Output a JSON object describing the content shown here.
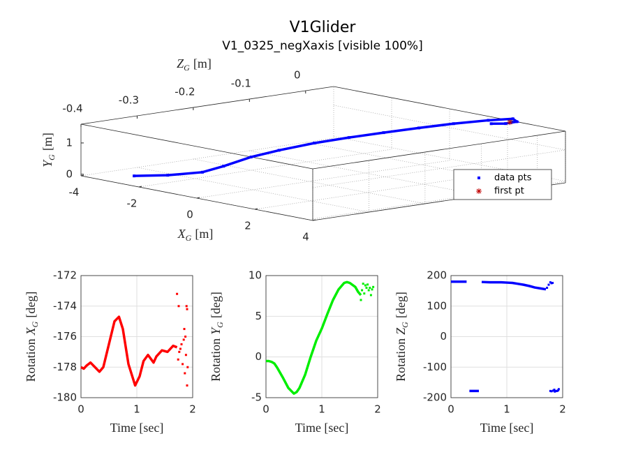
{
  "chart_data": [
    {
      "type": "scatter3d",
      "title": "V1Glider",
      "subtitle": "V1_0325_negXaxis [visible 100%]",
      "xlabel": {
        "symbol": "X",
        "subscript": "G",
        "unit": "[m]"
      },
      "ylabel": {
        "symbol": "Y",
        "subscript": "G",
        "unit": "[m]"
      },
      "zlabel": {
        "symbol": "Z",
        "subscript": "G",
        "unit": "[m]"
      },
      "xlim": [
        -4,
        4
      ],
      "ylim": [
        -0.05,
        1.6
      ],
      "zlim": [
        -0.4,
        0.05
      ],
      "xticks": [
        -4,
        -2,
        0,
        2,
        4
      ],
      "yticks": [
        0,
        1
      ],
      "zticks": [
        -0.4,
        -0.3,
        -0.2,
        -0.1,
        0
      ],
      "grid": true,
      "legend": "southeast",
      "series": [
        {
          "name": "data pts",
          "color": "#0000ff",
          "marker": "square",
          "x": [
            -3,
            -2.5,
            -2,
            -1.5,
            -1,
            -0.5,
            0,
            0.5,
            1,
            1.5,
            2,
            2.5,
            3,
            3.1,
            2.9,
            2.6
          ],
          "y": [
            0.01,
            0.03,
            0.12,
            0.37,
            0.69,
            0.93,
            1.15,
            1.32,
            1.47,
            1.61,
            1.74,
            1.84,
            1.93,
            1.85,
            1.78,
            1.75
          ],
          "z": [
            -0.357,
            -0.323,
            -0.287,
            -0.275,
            -0.252,
            -0.228,
            -0.191,
            -0.155,
            -0.119,
            -0.082,
            -0.046,
            -0.01,
            0.008,
            0.01,
            0,
            -0.01
          ]
        },
        {
          "name": "first pt",
          "color": "#c00000",
          "marker": "asterisk",
          "x": [
            3.05
          ],
          "y": [
            1.85
          ],
          "z": [
            0
          ]
        }
      ]
    },
    {
      "type": "scatter",
      "xlabel": "Time [sec]",
      "ylabel": {
        "prefix": "Rotation",
        "symbol": "X",
        "subscript": "G",
        "unit": "[deg]"
      },
      "xlim": [
        0,
        2
      ],
      "ylim": [
        -180,
        -172
      ],
      "xticks": [
        0,
        1,
        2
      ],
      "yticks": [
        -180,
        -178,
        -176,
        -174,
        -172
      ],
      "grid": true,
      "series": [
        {
          "color": "#ff0000",
          "style": "line",
          "x": [
            0,
            0.05,
            0.1,
            0.17,
            0.25,
            0.33,
            0.4,
            0.5,
            0.6,
            0.68,
            0.75,
            0.85,
            0.97,
            1.05,
            1.12,
            1.2,
            1.3,
            1.35,
            1.45,
            1.55,
            1.65,
            1.72
          ],
          "values": [
            -178,
            -178.1,
            -177.9,
            -177.7,
            -178,
            -178.3,
            -178,
            -176.5,
            -175,
            -174.7,
            -175.5,
            -177.8,
            -179.2,
            -178.6,
            -177.6,
            -177.2,
            -177.7,
            -177.3,
            -176.9,
            -177,
            -176.6,
            -176.7
          ]
        },
        {
          "color": "#ff0000",
          "style": "markers",
          "x": [
            1.72,
            1.74,
            1.75,
            1.76,
            1.78,
            1.8,
            1.82,
            1.84,
            1.85,
            1.86,
            1.87,
            1.88,
            1.89,
            1.9,
            1.9,
            1.91
          ],
          "values": [
            -173.2,
            -177.5,
            -174,
            -177,
            -176.8,
            -176.5,
            -177.8,
            -176.2,
            -175.5,
            -178.4,
            -176,
            -177.2,
            -174,
            -179.2,
            -174.2,
            -178
          ]
        }
      ]
    },
    {
      "type": "scatter",
      "xlabel": "Time [sec]",
      "ylabel": {
        "prefix": "Rotation",
        "symbol": "Y",
        "subscript": "G",
        "unit": "[deg]"
      },
      "xlim": [
        0,
        2
      ],
      "ylim": [
        -5,
        10
      ],
      "xticks": [
        0,
        1,
        2
      ],
      "yticks": [
        -5,
        0,
        5,
        10
      ],
      "grid": true,
      "series": [
        {
          "color": "#00ee00",
          "style": "line",
          "x": [
            0,
            0.05,
            0.1,
            0.15,
            0.2,
            0.3,
            0.4,
            0.5,
            0.55,
            0.6,
            0.7,
            0.8,
            0.85,
            0.9,
            1.0,
            1.1,
            1.2,
            1.3,
            1.4,
            1.45,
            1.5,
            1.6,
            1.65,
            1.7
          ],
          "values": [
            -0.5,
            -0.5,
            -0.6,
            -0.8,
            -1.3,
            -2.5,
            -3.8,
            -4.5,
            -4.3,
            -3.8,
            -2.2,
            0,
            1,
            2,
            3.5,
            5.3,
            7,
            8.3,
            9.1,
            9.2,
            9.1,
            8.6,
            8,
            7.6
          ]
        },
        {
          "color": "#00ee00",
          "style": "markers",
          "x": [
            1.7,
            1.72,
            1.74,
            1.76,
            1.78,
            1.8,
            1.82,
            1.84,
            1.86,
            1.88,
            1.9,
            1.92
          ],
          "values": [
            7,
            8.2,
            9,
            7.8,
            8.8,
            8.5,
            8.9,
            8.2,
            8.5,
            7.6,
            8.3,
            8.6
          ]
        }
      ]
    },
    {
      "type": "scatter",
      "xlabel": "Time [sec]",
      "ylabel": {
        "prefix": "Rotation",
        "symbol": "Z",
        "subscript": "G",
        "unit": "[deg]"
      },
      "xlim": [
        0,
        2
      ],
      "ylim": [
        -200,
        200
      ],
      "xticks": [
        0,
        1,
        2
      ],
      "yticks": [
        -200,
        -100,
        0,
        100,
        200
      ],
      "grid": true,
      "series": [
        {
          "color": "#0000ff",
          "style": "line",
          "x": [
            0,
            0.1,
            0.2,
            0.28,
            0.3,
            0.33,
            0.4,
            0.5,
            0.52,
            0.55,
            0.7,
            0.9,
            1.0,
            1.1,
            1.2,
            1.3,
            1.4,
            1.5,
            1.6,
            1.7
          ],
          "values": [
            180,
            180,
            180,
            180,
            null,
            -178,
            -178,
            -178,
            null,
            179,
            178,
            178,
            177,
            176,
            173,
            170,
            166,
            161,
            158,
            155
          ]
        },
        {
          "color": "#0000ff",
          "style": "markers",
          "x": [
            1.72,
            1.75,
            1.78,
            1.8,
            1.82,
            1.85,
            1.88,
            1.9,
            1.92,
            1.78,
            1.8,
            1.83,
            1.86,
            1.9,
            1.93
          ],
          "values": [
            160,
            170,
            178,
            175,
            176,
            -174,
            -178,
            -178,
            -176,
            -178,
            -179,
            -177,
            -180,
            -178,
            -172
          ]
        }
      ]
    }
  ]
}
